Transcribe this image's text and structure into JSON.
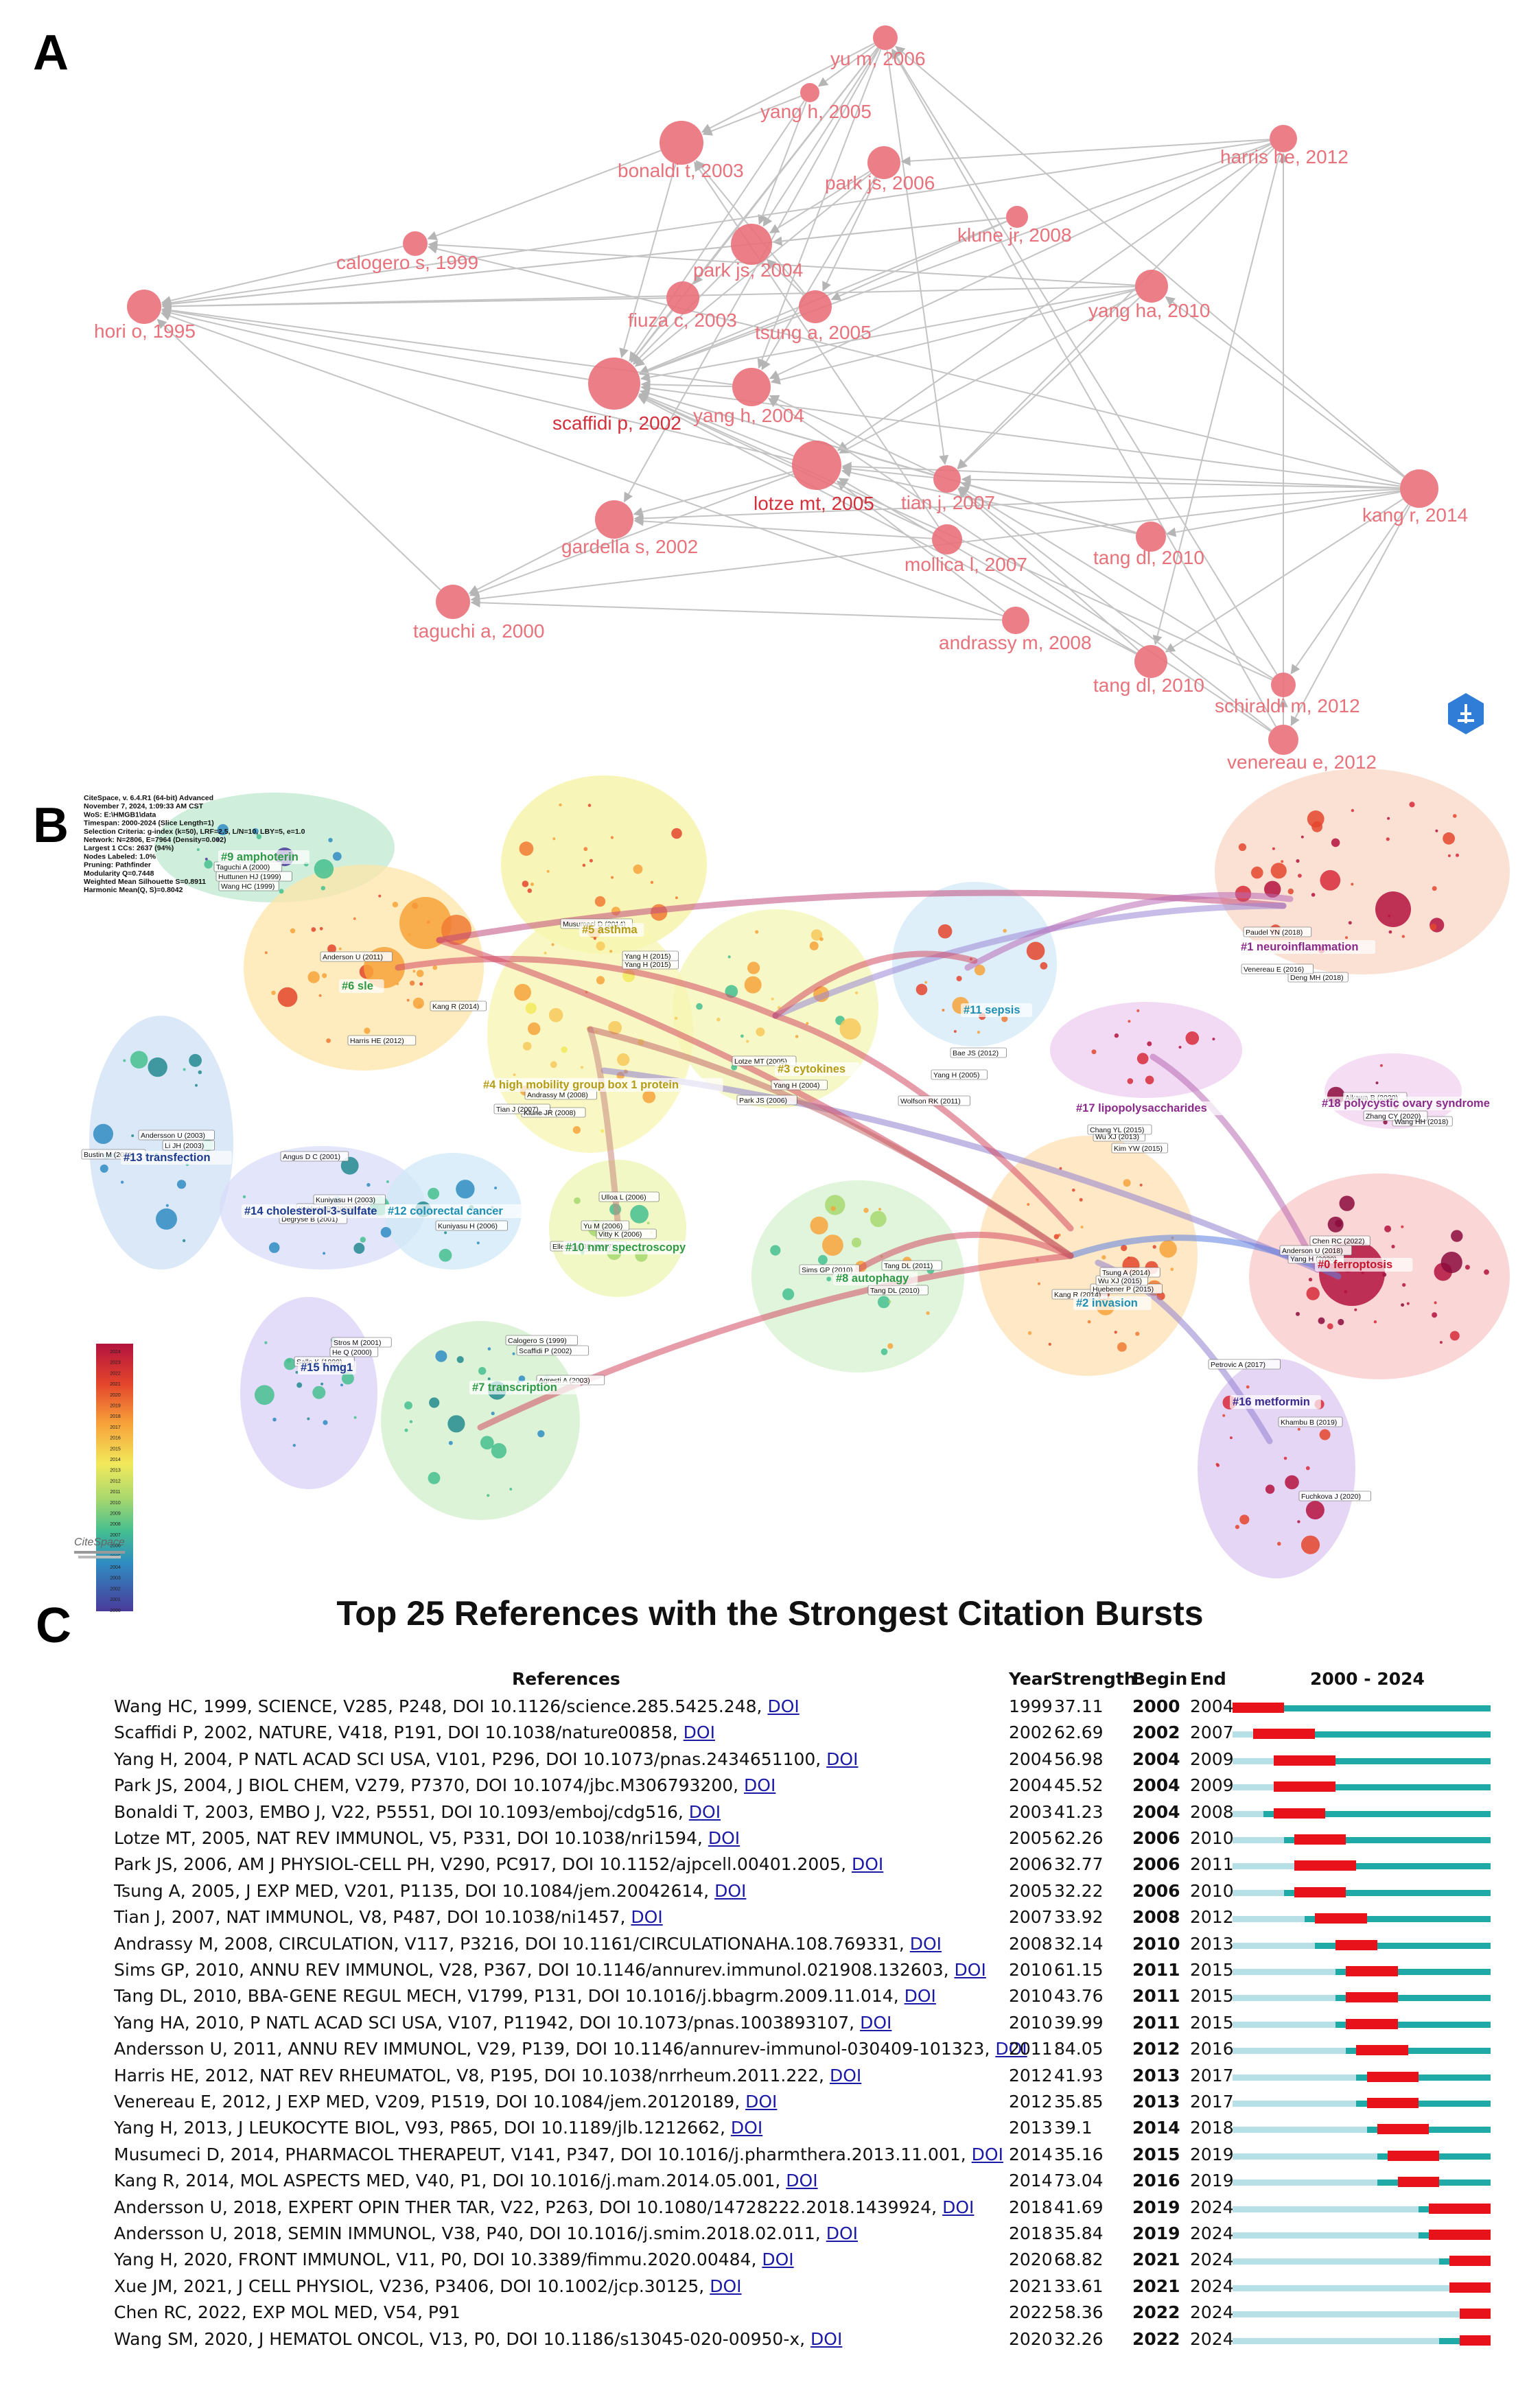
{
  "panels": {
    "a": "A",
    "b": "B",
    "c": "C"
  },
  "network_a": {
    "nodes": [
      {
        "id": "yu_m_2006",
        "label": "yu m, 2006"
      },
      {
        "id": "yang_h_2005",
        "label": "yang h, 2005"
      },
      {
        "id": "bonaldi_t_2003",
        "label": "bonaldi t, 2003"
      },
      {
        "id": "park_js_2006",
        "label": "park js, 2006"
      },
      {
        "id": "harris_he_2012",
        "label": "harris he, 2012"
      },
      {
        "id": "calogero_s_1999",
        "label": "calogero s, 1999"
      },
      {
        "id": "klune_jr_2008",
        "label": "klune jr, 2008"
      },
      {
        "id": "park_js_2004",
        "label": "park js, 2004"
      },
      {
        "id": "hori_o_1995",
        "label": "hori o, 1995"
      },
      {
        "id": "fiuza_c_2003",
        "label": "fiuza c, 2003"
      },
      {
        "id": "tsung_a_2005",
        "label": "tsung a, 2005"
      },
      {
        "id": "yang_ha_2010",
        "label": "yang ha, 2010"
      },
      {
        "id": "scaffidi_p_2002",
        "label": "scaffidi p, 2002"
      },
      {
        "id": "yang_h_2004",
        "label": "yang h, 2004"
      },
      {
        "id": "lotze_mt_2005",
        "label": "lotze mt, 2005"
      },
      {
        "id": "tian_j_2007",
        "label": "tian j, 2007"
      },
      {
        "id": "kang_r_2014",
        "label": "kang r, 2014"
      },
      {
        "id": "gardella_s_2002",
        "label": "gardella s, 2002"
      },
      {
        "id": "mollica_l_2007",
        "label": "mollica l, 2007"
      },
      {
        "id": "tang_dl_2010a",
        "label": "tang dl, 2010"
      },
      {
        "id": "taguchi_a_2000",
        "label": "taguchi a, 2000"
      },
      {
        "id": "andrassy_m_2008",
        "label": "andrassy m, 2008"
      },
      {
        "id": "tang_dl_2010b",
        "label": "tang dl, 2010"
      },
      {
        "id": "schiraldi_m_2012",
        "label": "schiraldi m, 2012"
      },
      {
        "id": "venereau_e_2012",
        "label": "venereau e, 2012"
      }
    ]
  },
  "network_b": {
    "info": [
      "CiteSpace, v. 6.4.R1 (64-bit) Advanced",
      "November 7, 2024, 1:09:33 AM CST",
      "WoS: E:\\HMGB1\\data",
      "Timespan: 2000-2024 (Slice Length=1)",
      "Selection Criteria: g-index (k=50), LRF=2.5, L/N=10, LBY=5, e=1.0",
      "Network: N=2806, E=7964 (Density=0.002)",
      "Largest 1 CCs: 2637 (94%)",
      "Nodes Labeled: 1.0%",
      "Pruning: Pathfinder",
      "Modularity Q=0.7448",
      "Weighted Mean Silhouette S=0.8911",
      "Harmonic Mean(Q, S)=0.8042"
    ],
    "clusters": [
      {
        "id": "c9",
        "label": "#9 amphoterin"
      },
      {
        "id": "c5",
        "label": "#5 asthma"
      },
      {
        "id": "c1",
        "label": "#1 neuroinflammation"
      },
      {
        "id": "c6",
        "label": "#6 sle"
      },
      {
        "id": "c11",
        "label": "#11 sepsis"
      },
      {
        "id": "c3",
        "label": "#3 cytokines"
      },
      {
        "id": "c4",
        "label": "#4 high mobility group box 1 protein"
      },
      {
        "id": "c17",
        "label": "#17 lipopolysaccharides"
      },
      {
        "id": "c18",
        "label": "#18 polycystic ovary syndrome"
      },
      {
        "id": "c13",
        "label": "#13 transfection"
      },
      {
        "id": "c14",
        "label": "#14 cholesterol-3-sulfate"
      },
      {
        "id": "c12",
        "label": "#12 colorectal cancer"
      },
      {
        "id": "c10",
        "label": "#10 nmr spectroscopy"
      },
      {
        "id": "c8",
        "label": "#8 autophagy"
      },
      {
        "id": "c2",
        "label": "#2 invasion"
      },
      {
        "id": "c0",
        "label": "#0 ferroptosis"
      },
      {
        "id": "c15",
        "label": "#15 hmg1"
      },
      {
        "id": "c7",
        "label": "#7 transcription"
      },
      {
        "id": "c16",
        "label": "#16 metformin"
      }
    ],
    "refs": [
      "Taguchi A (2000)",
      "Huttunen HJ (1999)",
      "Wang HC (1999)",
      "Musumeci D (2014)",
      "Yang H (2015)",
      "Yang H (2015)",
      "Paudel YN (2018)",
      "Venereau E (2016)",
      "Deng MH (2018)",
      "Anderson U (2011)",
      "Kang R (2014)",
      "Harris HE (2012)",
      "Lotze MT (2005)",
      "Bae JS (2012)",
      "Yang H (2005)",
      "Andrassy M (2008)",
      "Yang H (2004)",
      "Park JS (2006)",
      "Wolfson RK (2011)",
      "Tian J (2007)",
      "Klune JR (2008)",
      "Aikawa B (2020)",
      "Zhang CY (2020)",
      "Wang HH (2018)",
      "Chang YL (2015)",
      "Wu XJ (2013)",
      "Kim YW (2015)",
      "Andersson U (2003)",
      "Li JH (2003)",
      "Bustin M (2001)",
      "Angus D C (2001)",
      "Kuniyasu H (2003)",
      "Kokkola R (2002)",
      "Degryse B (2001)",
      "Ulloa L (2006)",
      "Yu M (2006)",
      "Vitty K (2006)",
      "Ellerman JE (2007)",
      "Kuniyasu H (2006)",
      "Sims GP (2010)",
      "Tang DL (2011)",
      "Tang DL (2010)",
      "Tsung A (2014)",
      "Wu XJ (2015)",
      "Huebener P (2015)",
      "Kang R (2014)",
      "Anderson U (2018)",
      "Chen RC (2022)",
      "Yang H (2020)",
      "Stros M (2001)",
      "He Q (2000)",
      "Sallo K (1999)",
      "Calogero S (1999)",
      "Scaffidi P (2002)",
      "Agresti A (2003)",
      "Petrovic A (2017)",
      "Khambu B (2019)",
      "Fuchkova J (2020)"
    ],
    "legend_years": [
      "2024",
      "2023",
      "2022",
      "2021",
      "2020",
      "2019",
      "2018",
      "2017",
      "2016",
      "2015",
      "2014",
      "2013",
      "2012",
      "2011",
      "2010",
      "2009",
      "2008",
      "2007",
      "2006",
      "2005",
      "2004",
      "2003",
      "2002",
      "2001",
      "2000"
    ],
    "logo_text": "CiteSpace"
  },
  "burst_table": {
    "title": "Top 25 References with the Strongest Citation Bursts",
    "headers": {
      "references": "References",
      "year": "Year",
      "strength": "Strength",
      "begin": "Begin",
      "end": "End",
      "range": "2000 - 2024"
    },
    "range_start": 2000,
    "range_end": 2024,
    "doi_label": "DOI",
    "colors": {
      "burst": "#e8121b",
      "active": "#1faaa8",
      "pre": "#b6dfe6"
    },
    "rows": [
      {
        "ref": "Wang HC, 1999, SCIENCE, V285, P248, DOI 10.1126/science.285.5425.248,",
        "year": "1999",
        "strength": "37.11",
        "begin": "2000",
        "end": "2004"
      },
      {
        "ref": "Scaffidi P, 2002, NATURE, V418, P191, DOI 10.1038/nature00858,",
        "year": "2002",
        "strength": "62.69",
        "begin": "2002",
        "end": "2007"
      },
      {
        "ref": "Yang H, 2004, P NATL ACAD SCI USA, V101, P296, DOI 10.1073/pnas.2434651100,",
        "year": "2004",
        "strength": "56.98",
        "begin": "2004",
        "end": "2009"
      },
      {
        "ref": "Park JS, 2004, J BIOL CHEM, V279, P7370, DOI 10.1074/jbc.M306793200,",
        "year": "2004",
        "strength": "45.52",
        "begin": "2004",
        "end": "2009"
      },
      {
        "ref": "Bonaldi T, 2003, EMBO J, V22, P5551, DOI 10.1093/emboj/cdg516,",
        "year": "2003",
        "strength": "41.23",
        "begin": "2004",
        "end": "2008"
      },
      {
        "ref": "Lotze MT, 2005, NAT REV IMMUNOL, V5, P331, DOI 10.1038/nri1594,",
        "year": "2005",
        "strength": "62.26",
        "begin": "2006",
        "end": "2010"
      },
      {
        "ref": "Park JS, 2006, AM J PHYSIOL-CELL PH, V290, PC917, DOI 10.1152/ajpcell.00401.2005,",
        "year": "2006",
        "strength": "32.77",
        "begin": "2006",
        "end": "2011"
      },
      {
        "ref": "Tsung A, 2005, J EXP MED, V201, P1135, DOI 10.1084/jem.20042614,",
        "year": "2005",
        "strength": "32.22",
        "begin": "2006",
        "end": "2010"
      },
      {
        "ref": "Tian J, 2007, NAT IMMUNOL, V8, P487, DOI 10.1038/ni1457,",
        "year": "2007",
        "strength": "33.92",
        "begin": "2008",
        "end": "2012"
      },
      {
        "ref": "Andrassy M, 2008, CIRCULATION, V117, P3216, DOI 10.1161/CIRCULATIONAHA.108.769331,",
        "year": "2008",
        "strength": "32.14",
        "begin": "2010",
        "end": "2013"
      },
      {
        "ref": "Sims GP, 2010, ANNU REV IMMUNOL, V28, P367, DOI 10.1146/annurev.immunol.021908.132603,",
        "year": "2010",
        "strength": "61.15",
        "begin": "2011",
        "end": "2015"
      },
      {
        "ref": "Tang DL, 2010, BBA-GENE REGUL MECH, V1799, P131, DOI 10.1016/j.bbagrm.2009.11.014,",
        "year": "2010",
        "strength": "43.76",
        "begin": "2011",
        "end": "2015"
      },
      {
        "ref": "Yang HA, 2010, P NATL ACAD SCI USA, V107, P11942, DOI 10.1073/pnas.1003893107,",
        "year": "2010",
        "strength": "39.99",
        "begin": "2011",
        "end": "2015"
      },
      {
        "ref": "Andersson U, 2011, ANNU REV IMMUNOL, V29, P139, DOI 10.1146/annurev-immunol-030409-101323,",
        "year": "2011",
        "strength": "84.05",
        "begin": "2012",
        "end": "2016"
      },
      {
        "ref": "Harris HE, 2012, NAT REV RHEUMATOL, V8, P195, DOI 10.1038/nrrheum.2011.222,",
        "year": "2012",
        "strength": "41.93",
        "begin": "2013",
        "end": "2017"
      },
      {
        "ref": "Venereau E, 2012, J EXP MED, V209, P1519, DOI 10.1084/jem.20120189,",
        "year": "2012",
        "strength": "35.85",
        "begin": "2013",
        "end": "2017"
      },
      {
        "ref": "Yang H, 2013, J LEUKOCYTE BIOL, V93, P865, DOI 10.1189/jlb.1212662,",
        "year": "2013",
        "strength": "39.1",
        "begin": "2014",
        "end": "2018"
      },
      {
        "ref": "Musumeci D, 2014, PHARMACOL THERAPEUT, V141, P347, DOI 10.1016/j.pharmthera.2013.11.001,",
        "year": "2014",
        "strength": "35.16",
        "begin": "2015",
        "end": "2019"
      },
      {
        "ref": "Kang R, 2014, MOL ASPECTS MED, V40, P1, DOI 10.1016/j.mam.2014.05.001,",
        "year": "2014",
        "strength": "73.04",
        "begin": "2016",
        "end": "2019"
      },
      {
        "ref": "Andersson U, 2018, EXPERT OPIN THER TAR, V22, P263, DOI 10.1080/14728222.2018.1439924,",
        "year": "2018",
        "strength": "41.69",
        "begin": "2019",
        "end": "2024"
      },
      {
        "ref": "Andersson U, 2018, SEMIN IMMUNOL, V38, P40, DOI 10.1016/j.smim.2018.02.011,",
        "year": "2018",
        "strength": "35.84",
        "begin": "2019",
        "end": "2024"
      },
      {
        "ref": "Yang H, 2020, FRONT IMMUNOL, V11, P0, DOI 10.3389/fimmu.2020.00484,",
        "year": "2020",
        "strength": "68.82",
        "begin": "2021",
        "end": "2024"
      },
      {
        "ref": "Xue JM, 2021, J CELL PHYSIOL, V236, P3406, DOI 10.1002/jcp.30125,",
        "year": "2021",
        "strength": "33.61",
        "begin": "2021",
        "end": "2024"
      },
      {
        "ref": "Chen RC, 2022, EXP MOL MED, V54, P91",
        "year": "2022",
        "strength": "58.36",
        "begin": "2022",
        "end": "2024",
        "no_doi": true
      },
      {
        "ref": "Wang SM, 2020, J HEMATOL ONCOL, V13, P0, DOI 10.1186/s13045-020-00950-x,",
        "year": "2020",
        "strength": "32.26",
        "begin": "2022",
        "end": "2024"
      }
    ]
  }
}
